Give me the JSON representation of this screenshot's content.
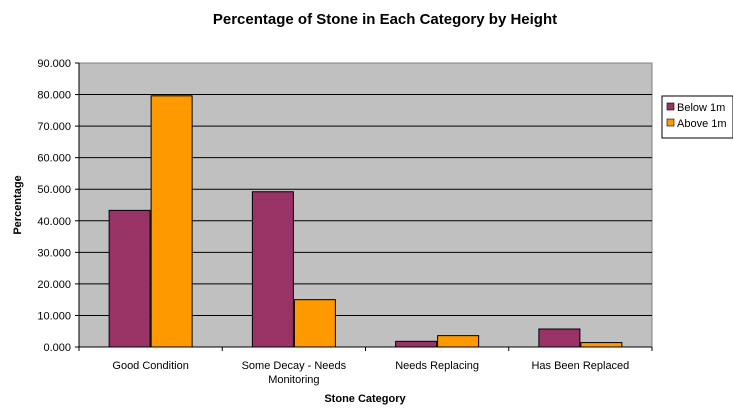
{
  "chart_data": {
    "type": "bar",
    "title": "Percentage of Stone in Each Category by Height",
    "xlabel": "Stone Category",
    "ylabel": "Percentage",
    "categories": [
      [
        "Good Condition"
      ],
      [
        "Some Decay - Needs",
        "Monitoring"
      ],
      [
        "Needs Replacing"
      ],
      [
        "Has Been Replaced"
      ]
    ],
    "series": [
      {
        "name": "Below 1m",
        "color": "#993366",
        "values": [
          43.3,
          49.2,
          1.8,
          5.7
        ]
      },
      {
        "name": "Above 1m",
        "color": "#FF9900",
        "values": [
          79.6,
          15.0,
          3.6,
          1.4
        ]
      }
    ],
    "ylim": [
      0,
      90
    ],
    "ytick_step": 10,
    "ytick_labels": [
      "0.000",
      "10.000",
      "20.000",
      "30.000",
      "40.000",
      "50.000",
      "60.000",
      "70.000",
      "80.000",
      "90.000"
    ],
    "plot_background": "#C0C0C0",
    "grid": true,
    "legend": "right"
  }
}
